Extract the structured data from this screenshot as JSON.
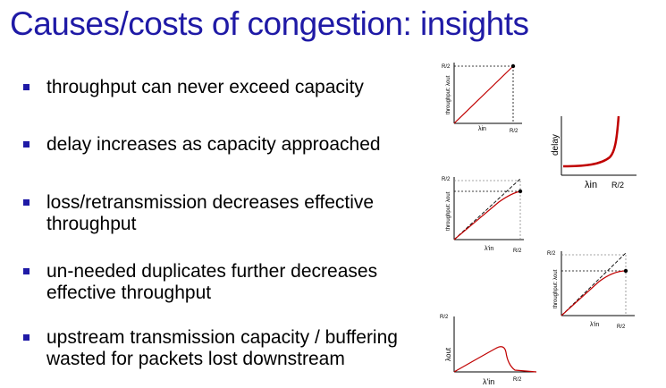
{
  "slide": {
    "title": "Causes/costs of congestion: insights",
    "bullets": [
      {
        "line1": "throughput can never exceed capacity",
        "line2": ""
      },
      {
        "line1": "delay increases as capacity approached",
        "line2": ""
      },
      {
        "line1": "loss/retransmission decreases effective",
        "line2": "throughput"
      },
      {
        "line1": "un-needed duplicates further decreases",
        "line2": "effective throughput"
      },
      {
        "line1": "upstream transmission capacity / buffering",
        "line2": "wasted for packets lost downstream"
      }
    ]
  },
  "colors": {
    "title": "#1f1aa6",
    "bullet_marker": "#1f1aa6",
    "curve": "#c00000",
    "axis": "#000000"
  },
  "chart_data": [
    {
      "type": "line",
      "ylabel": "throughput: λout",
      "xlabel": "λin",
      "y_tick": "R/2",
      "x_tick": "R/2",
      "series": [
        {
          "x": [
            0,
            0.5
          ],
          "y": [
            0,
            0.5
          ]
        }
      ],
      "marker": {
        "x": 0.5,
        "y": 0.5
      }
    },
    {
      "type": "line",
      "ylabel": "delay",
      "xlabel": "λin",
      "x_tick": "R/2",
      "series": [
        {
          "description_points": [
            [
              0,
              0.2
            ],
            [
              0.5,
              1.0
            ]
          ]
        }
      ]
    },
    {
      "type": "line",
      "ylabel": "throughput: λout",
      "xlabel": "λ'in",
      "y_tick": "R/2",
      "x_tick": "R/2",
      "series": [
        {
          "x": [
            0,
            0.5
          ],
          "y": [
            0,
            0.43
          ]
        }
      ],
      "ideal": {
        "x": [
          0,
          0.5
        ],
        "y": [
          0,
          0.5
        ]
      }
    },
    {
      "type": "line",
      "ylabel": "throughput: λout",
      "xlabel": "λ'in",
      "y_tick": "R/2",
      "x_tick": "R/2",
      "series": [
        {
          "x": [
            0,
            0.5
          ],
          "y": [
            0,
            0.36
          ]
        }
      ],
      "ideal": {
        "x": [
          0,
          0.5
        ],
        "y": [
          0,
          0.5
        ]
      }
    },
    {
      "type": "line",
      "ylabel": "λout",
      "xlabel": "λ'in",
      "y_tick": "R/2",
      "x_tick": "R/2",
      "series": [
        {
          "description": "rises then collapses after peak"
        }
      ]
    }
  ]
}
